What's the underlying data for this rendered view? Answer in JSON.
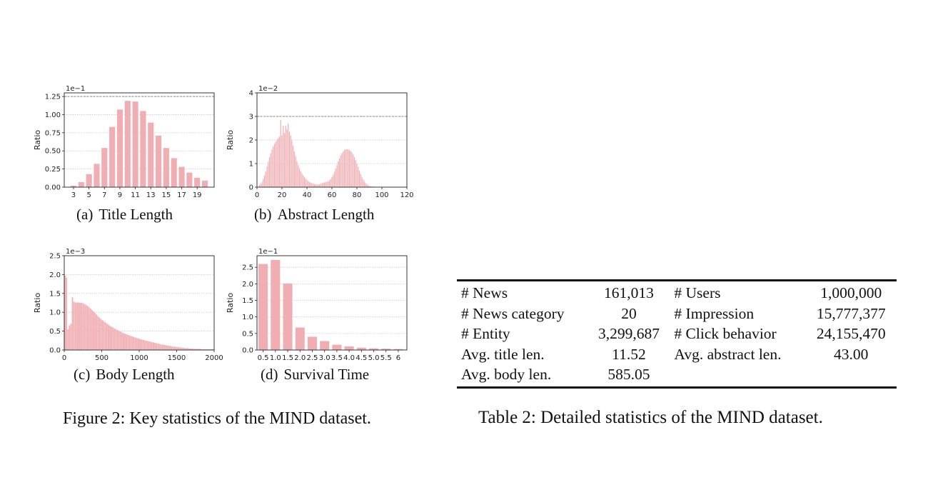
{
  "figure": {
    "caption": "Figure 2: Key statistics of the MIND dataset.",
    "panels": [
      {
        "id": "a",
        "tag": "(a)",
        "caption": "Title Length"
      },
      {
        "id": "b",
        "tag": "(b)",
        "caption": "Abstract Length"
      },
      {
        "id": "c",
        "tag": "(c)",
        "caption": "Body Length"
      },
      {
        "id": "d",
        "tag": "(d)",
        "caption": "Survival Time"
      }
    ]
  },
  "chart_data": [
    {
      "type": "bar",
      "title": "",
      "xlabel": "",
      "ylabel": "Ratio",
      "y_scale_label": "1e−1",
      "xlim": [
        1.8,
        21.2
      ],
      "ylim": [
        0,
        1.3
      ],
      "bar_color": "#f0aeb2",
      "bar_width": 0.75,
      "grid": "horizontal dotted",
      "reference_line": 1.25,
      "x_ticks": [
        3,
        5,
        7,
        9,
        11,
        13,
        15,
        17,
        19
      ],
      "x_tick_labels": [
        "3",
        "5",
        "7",
        "9",
        "11",
        "13",
        "15",
        "17",
        "19"
      ],
      "y_ticks": [
        0,
        0.25,
        0.5,
        0.75,
        1.0,
        1.25
      ],
      "y_tick_labels": [
        "0.00",
        "0.25",
        "0.50",
        "0.75",
        "1.00",
        "1.25"
      ],
      "x": [
        3,
        4,
        5,
        6,
        7,
        8,
        9,
        10,
        11,
        12,
        13,
        14,
        15,
        16,
        17,
        18,
        19,
        20
      ],
      "values": [
        0.02,
        0.07,
        0.18,
        0.32,
        0.54,
        0.83,
        1.07,
        1.19,
        1.18,
        1.05,
        0.89,
        0.71,
        0.54,
        0.4,
        0.28,
        0.2,
        0.13,
        0.09
      ]
    },
    {
      "type": "bar",
      "title": "",
      "xlabel": "",
      "ylabel": "Ratio",
      "y_scale_label": "1e−2",
      "xlim": [
        0,
        120
      ],
      "ylim": [
        0,
        4
      ],
      "bar_color": "#f0aeb2",
      "bar_width": 0.7,
      "grid": "horizontal dotted",
      "reference_line": 3,
      "x_ticks": [
        0,
        20,
        40,
        60,
        80,
        100,
        120
      ],
      "x_tick_labels": [
        "0",
        "20",
        "40",
        "60",
        "80",
        "100",
        "120"
      ],
      "y_ticks": [
        0,
        1,
        2,
        3,
        4
      ],
      "y_tick_labels": [
        "0",
        "1",
        "2",
        "3",
        "4"
      ],
      "x": [
        2,
        3,
        4,
        5,
        6,
        7,
        8,
        9,
        10,
        11,
        12,
        13,
        14,
        15,
        16,
        17,
        18,
        19,
        20,
        21,
        22,
        23,
        24,
        25,
        26,
        27,
        28,
        29,
        30,
        31,
        32,
        33,
        34,
        35,
        36,
        37,
        38,
        39,
        40,
        41,
        42,
        43,
        44,
        45,
        46,
        47,
        48,
        49,
        50,
        51,
        52,
        53,
        54,
        55,
        56,
        57,
        58,
        59,
        60,
        61,
        62,
        63,
        64,
        65,
        66,
        67,
        68,
        69,
        70,
        71,
        72,
        73,
        74,
        75,
        76,
        77,
        78,
        79,
        80,
        81,
        82,
        83,
        84,
        85,
        86,
        87,
        88,
        89,
        90,
        91,
        92,
        93,
        94,
        95,
        96,
        97,
        98,
        99,
        100,
        101,
        102,
        103,
        104,
        105
      ],
      "values": [
        0.1,
        0.15,
        0.22,
        0.35,
        0.5,
        0.68,
        0.87,
        1.07,
        1.26,
        1.44,
        1.6,
        1.73,
        1.84,
        1.93,
        2.01,
        2.08,
        2.15,
        2.85,
        2.2,
        2.6,
        2.3,
        2.6,
        2.45,
        2.7,
        2.35,
        2.2,
        1.98,
        1.75,
        1.52,
        1.3,
        1.1,
        0.94,
        0.8,
        0.68,
        0.58,
        0.5,
        0.42,
        0.36,
        0.3,
        0.26,
        0.22,
        0.19,
        0.17,
        0.15,
        0.13,
        0.12,
        0.11,
        0.11,
        0.12,
        0.14,
        0.17,
        0.19,
        0.2,
        0.21,
        0.23,
        0.25,
        0.29,
        0.35,
        0.43,
        0.53,
        0.65,
        0.79,
        0.94,
        1.09,
        1.22,
        1.34,
        1.44,
        1.52,
        1.57,
        1.6,
        1.61,
        1.6,
        1.57,
        1.53,
        1.47,
        1.38,
        1.27,
        1.14,
        1.0,
        0.85,
        0.7,
        0.56,
        0.44,
        0.33,
        0.24,
        0.17,
        0.12,
        0.08,
        0.05,
        0.04,
        0.03,
        0.02,
        0.02,
        0.01,
        0.01,
        0.01,
        0.01,
        0.01,
        0.01,
        0.01,
        0.01,
        0.01,
        0.01,
        0.01
      ]
    },
    {
      "type": "bar",
      "title": "",
      "xlabel": "",
      "ylabel": "Ratio",
      "y_scale_label": "1e−3",
      "xlim": [
        0,
        2000
      ],
      "ylim": [
        0,
        2.5
      ],
      "bar_color": "#f0aeb2",
      "bar_width": 17,
      "grid": "horizontal dotted",
      "reference_line": null,
      "x_ticks": [
        0,
        500,
        1000,
        1500,
        2000
      ],
      "x_tick_labels": [
        "0",
        "500",
        "1000",
        "1500",
        "2000"
      ],
      "y_ticks": [
        0,
        0.5,
        1.0,
        1.5,
        2.0,
        2.5
      ],
      "y_tick_labels": [
        "0.0",
        "0.5",
        "1.0",
        "1.5",
        "2.0",
        "2.5"
      ],
      "x": [
        10,
        30,
        50,
        70,
        90,
        110,
        130,
        150,
        170,
        190,
        210,
        230,
        250,
        270,
        290,
        310,
        330,
        350,
        370,
        390,
        410,
        430,
        450,
        470,
        490,
        510,
        530,
        550,
        570,
        590,
        610,
        630,
        650,
        670,
        690,
        710,
        730,
        750,
        770,
        790,
        810,
        830,
        850,
        870,
        890,
        910,
        930,
        950,
        970,
        990,
        1010,
        1030,
        1050,
        1070,
        1090,
        1110,
        1130,
        1150,
        1170,
        1190,
        1210,
        1230,
        1250,
        1270,
        1290,
        1310,
        1330,
        1350,
        1370,
        1390,
        1410,
        1430,
        1450,
        1470,
        1490,
        1510,
        1530,
        1550,
        1570,
        1590,
        1610,
        1630,
        1650,
        1670,
        1690,
        1710,
        1730,
        1750,
        1770,
        1790,
        1810,
        1830,
        1850,
        1870,
        1890,
        1910,
        1930,
        1950,
        1970,
        1990
      ],
      "values": [
        1.97,
        1.92,
        0.55,
        0.65,
        0.7,
        1.4,
        1.28,
        1.26,
        1.26,
        1.26,
        1.25,
        1.25,
        1.24,
        1.22,
        1.2,
        1.17,
        1.14,
        1.1,
        1.06,
        1.02,
        0.98,
        0.94,
        0.9,
        0.86,
        0.82,
        0.79,
        0.76,
        0.73,
        0.7,
        0.67,
        0.64,
        0.62,
        0.6,
        0.57,
        0.55,
        0.53,
        0.51,
        0.49,
        0.47,
        0.45,
        0.43,
        0.42,
        0.4,
        0.39,
        0.37,
        0.36,
        0.34,
        0.33,
        0.32,
        0.3,
        0.29,
        0.28,
        0.27,
        0.26,
        0.25,
        0.24,
        0.23,
        0.22,
        0.21,
        0.2,
        0.19,
        0.18,
        0.17,
        0.16,
        0.15,
        0.14,
        0.14,
        0.13,
        0.12,
        0.11,
        0.11,
        0.1,
        0.09,
        0.09,
        0.08,
        0.08,
        0.07,
        0.07,
        0.06,
        0.06,
        0.05,
        0.05,
        0.05,
        0.04,
        0.04,
        0.04,
        0.03,
        0.03,
        0.03,
        0.03,
        0.03,
        0.02,
        0.02,
        0.02,
        0.02,
        0.02,
        0.02,
        0.02,
        0.02,
        0.02
      ]
    },
    {
      "type": "bar",
      "title": "",
      "xlabel": "",
      "ylabel": "Ratio",
      "y_scale_label": "1e−1",
      "xlim": [
        0.25,
        6.35
      ],
      "ylim": [
        0,
        2.85
      ],
      "bar_color": "#f0aeb2",
      "bar_width": 0.38,
      "grid": "horizontal dotted",
      "reference_line": null,
      "x_ticks": [
        0.5,
        1.0,
        1.5,
        2.0,
        2.5,
        3.0,
        3.5,
        4.0,
        4.5,
        5.0,
        5.5,
        6.0
      ],
      "x_tick_labels": [
        "0.5",
        "1.0",
        "1.5",
        "2.0",
        "2.5",
        "3.0",
        "3.5",
        "4.0",
        "4.5",
        "5.0",
        "5.5",
        "6"
      ],
      "y_ticks": [
        0,
        0.5,
        1.0,
        1.5,
        2.0,
        2.5
      ],
      "y_tick_labels": [
        "0.0",
        "0.5",
        "1.0",
        "1.5",
        "2.0",
        "2.5"
      ],
      "x": [
        0.5,
        1.0,
        1.5,
        2.0,
        2.5,
        3.0,
        3.5,
        4.0,
        4.5,
        5.0,
        5.5,
        6.0
      ],
      "values": [
        2.6,
        2.72,
        2.01,
        0.68,
        0.4,
        0.27,
        0.16,
        0.11,
        0.07,
        0.05,
        0.04,
        0.03
      ]
    }
  ],
  "table": {
    "caption": "Table 2: Detailed statistics of the MIND dataset.",
    "rows": [
      [
        "# News",
        "161,013",
        "# Users",
        "1,000,000"
      ],
      [
        "# News category",
        "20",
        "# Impression",
        "15,777,377"
      ],
      [
        "# Entity",
        "3,299,687",
        "# Click behavior",
        "24,155,470"
      ],
      [
        "Avg. title len.",
        "11.52",
        "Avg. abstract len.",
        "43.00"
      ],
      [
        "Avg. body len.",
        "585.05",
        "",
        ""
      ]
    ]
  }
}
